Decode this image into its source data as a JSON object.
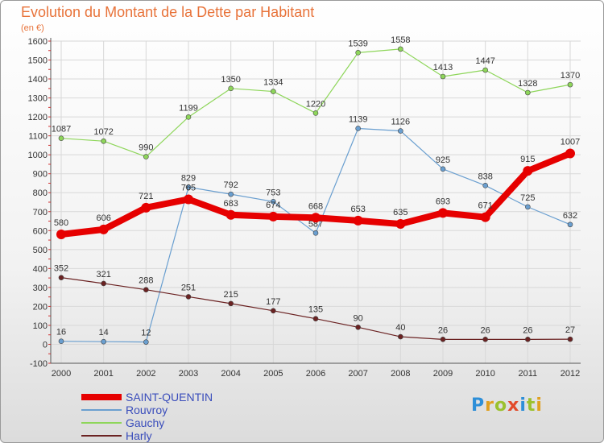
{
  "title": "Evolution du Montant de la Dette par Habitant",
  "unit": "(en €)",
  "brand": "Proxiti",
  "chart_data": {
    "type": "line",
    "x": [
      "2000",
      "2001",
      "2002",
      "2003",
      "2004",
      "2005",
      "2006",
      "2007",
      "2008",
      "2009",
      "2010",
      "2011",
      "2012"
    ],
    "ylim": [
      -100,
      1600
    ],
    "yticks": [
      -100,
      0,
      100,
      200,
      300,
      400,
      500,
      600,
      700,
      800,
      900,
      1000,
      1100,
      1200,
      1300,
      1400,
      1500,
      1600
    ],
    "grid": true,
    "legend_position": "bottom-left",
    "series": [
      {
        "name": "SAINT-QUENTIN",
        "color": "#e60000",
        "values": [
          580,
          606,
          721,
          765,
          683,
          674,
          668,
          653,
          635,
          693,
          671,
          915,
          1007
        ]
      },
      {
        "name": "Rouvroy",
        "color": "#6a9fd0",
        "values": [
          16,
          14,
          12,
          829,
          792,
          753,
          587,
          1139,
          1126,
          925,
          838,
          725,
          632
        ]
      },
      {
        "name": "Gauchy",
        "color": "#8ed65a",
        "values": [
          1087,
          1072,
          990,
          1199,
          1350,
          1334,
          1220,
          1539,
          1558,
          1413,
          1447,
          1328,
          1370
        ]
      },
      {
        "name": "Harly",
        "color": "#6b2222",
        "values": [
          352,
          321,
          288,
          251,
          215,
          177,
          135,
          90,
          40,
          26,
          26,
          26,
          27
        ]
      }
    ]
  }
}
